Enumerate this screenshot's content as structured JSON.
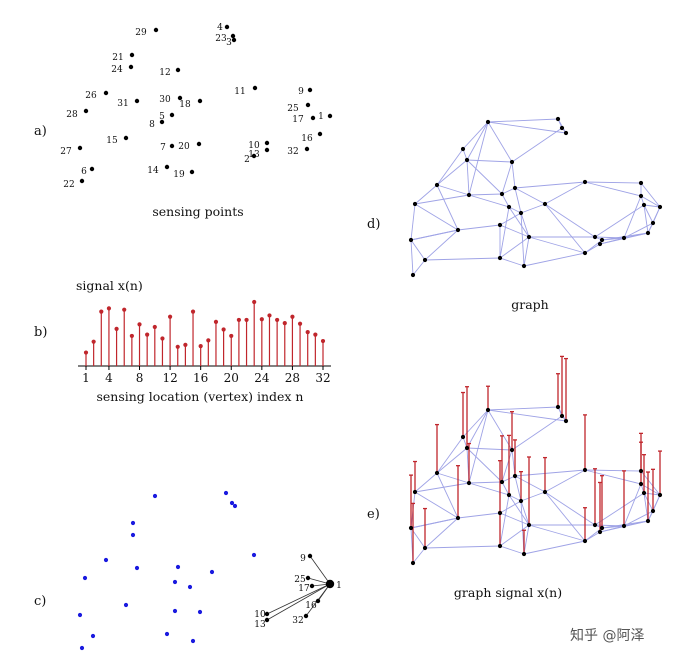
{
  "panels": {
    "a": {
      "label": "a)",
      "caption": "sensing points"
    },
    "b": {
      "label": "b)",
      "title": "signal x(n)",
      "xlabel": "sensing location (vertex) index n"
    },
    "c": {
      "label": "c)"
    },
    "d": {
      "label": "d)",
      "caption": "graph"
    },
    "e": {
      "label": "e)",
      "caption": "graph signal x(n)"
    }
  },
  "watermark": "知乎 @阿泽",
  "colors": {
    "stem": "#c0262c",
    "edge": "#9fa3e6",
    "vertex": "#000000",
    "cpoint": "#1a1adf"
  },
  "points": [
    {
      "id": "1"
    },
    {
      "id": "2"
    },
    {
      "id": "3"
    },
    {
      "id": "4"
    },
    {
      "id": "5"
    },
    {
      "id": "6"
    },
    {
      "id": "7"
    },
    {
      "id": "8"
    },
    {
      "id": "9"
    },
    {
      "id": "10"
    },
    {
      "id": "11"
    },
    {
      "id": "12"
    },
    {
      "id": "13"
    },
    {
      "id": "14"
    },
    {
      "id": "15"
    },
    {
      "id": "16"
    },
    {
      "id": "17"
    },
    {
      "id": "18"
    },
    {
      "id": "19"
    },
    {
      "id": "20"
    },
    {
      "id": "21"
    },
    {
      "id": "22"
    },
    {
      "id": "23"
    },
    {
      "id": "24"
    },
    {
      "id": "25"
    },
    {
      "id": "26"
    },
    {
      "id": "27"
    },
    {
      "id": "28"
    },
    {
      "id": "29"
    },
    {
      "id": "30"
    },
    {
      "id": "31"
    },
    {
      "id": "32"
    }
  ],
  "chart_data": {
    "type": "stem",
    "x": [
      1,
      2,
      3,
      4,
      5,
      6,
      7,
      8,
      9,
      10,
      11,
      12,
      13,
      14,
      15,
      16,
      17,
      18,
      19,
      20,
      21,
      22,
      23,
      24,
      25,
      26,
      27,
      28,
      29,
      30,
      31,
      32
    ],
    "values": [
      0.21,
      0.38,
      0.85,
      0.9,
      0.58,
      0.88,
      0.47,
      0.65,
      0.49,
      0.61,
      0.43,
      0.77,
      0.3,
      0.33,
      0.85,
      0.31,
      0.4,
      0.69,
      0.57,
      0.47,
      0.72,
      0.72,
      1.0,
      0.73,
      0.79,
      0.72,
      0.67,
      0.77,
      0.66,
      0.53,
      0.49,
      0.39
    ],
    "x_ticks": [
      "1",
      "4",
      "8",
      "12",
      "16",
      "20",
      "24",
      "28",
      "32"
    ],
    "c_labels": [
      "9",
      "25",
      "17",
      "1",
      "16",
      "10",
      "13",
      "32"
    ]
  }
}
